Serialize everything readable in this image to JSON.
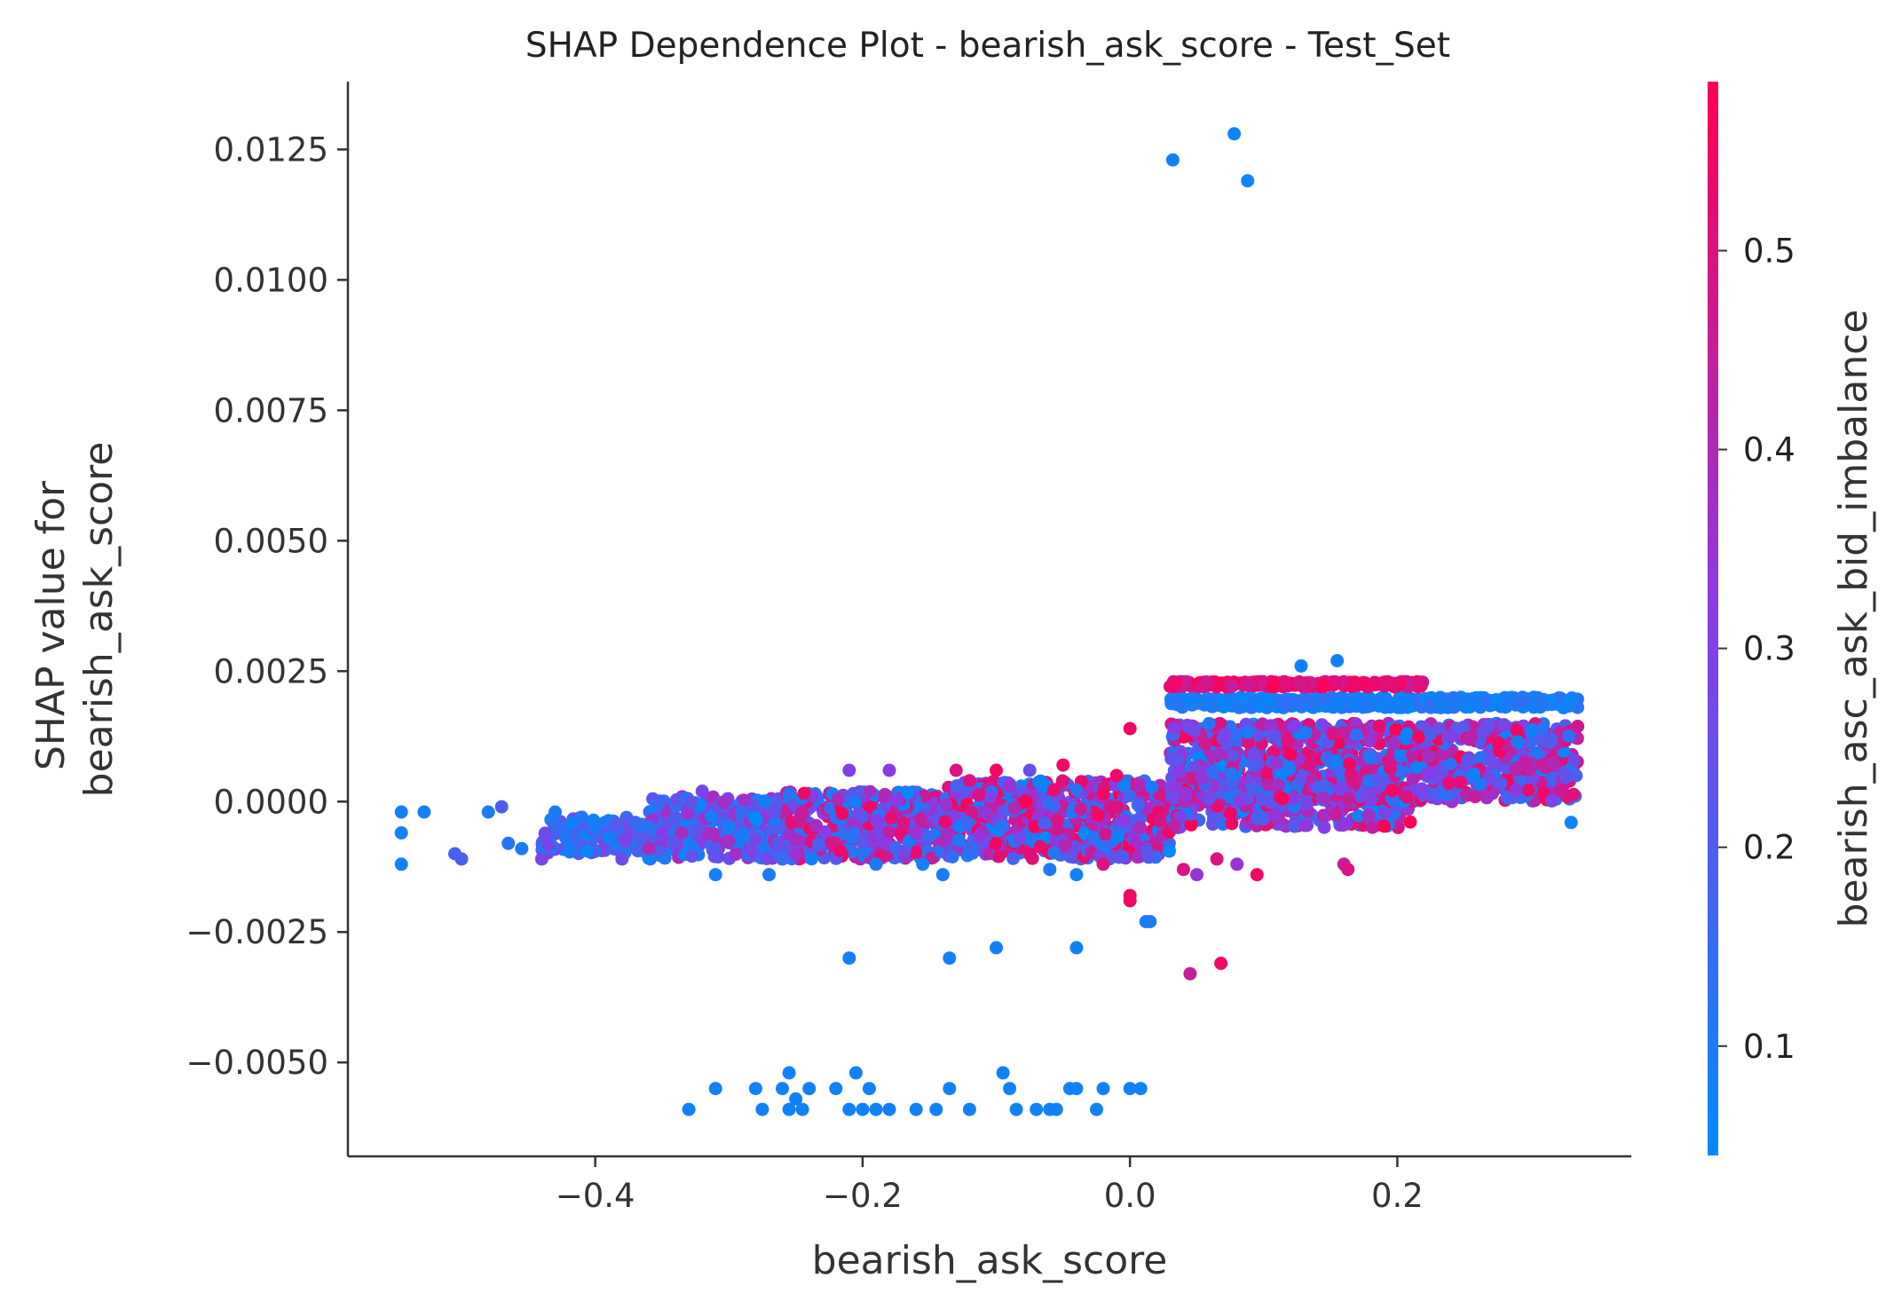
{
  "chart_data": {
    "type": "scatter",
    "title": "SHAP Dependence Plot - bearish_ask_score - Test_Set",
    "xlabel": "bearish_ask_score",
    "ylabel": "SHAP value for\nbearish_ask_score",
    "xlim": [
      -0.585,
      0.375
    ],
    "ylim": [
      -0.0068,
      0.0138
    ],
    "x_ticks": [
      -0.4,
      -0.2,
      0.0,
      0.2
    ],
    "x_tick_labels": [
      "−0.4",
      "−0.2",
      "0.0",
      "0.2"
    ],
    "y_ticks": [
      -0.005,
      -0.0025,
      0.0,
      0.0025,
      0.005,
      0.0075,
      0.01,
      0.0125
    ],
    "y_tick_labels": [
      "−0.0050",
      "−0.0025",
      "0.0000",
      "0.0025",
      "0.0050",
      "0.0075",
      "0.0100",
      "0.0125"
    ],
    "grid": false,
    "colorbar": {
      "label": "bearish_asc_ask_bid_imbalance",
      "range": [
        0.045,
        0.585
      ],
      "ticks": [
        0.1,
        0.2,
        0.3,
        0.4,
        0.5
      ],
      "tick_labels": [
        "0.1",
        "0.2",
        "0.3",
        "0.4",
        "0.5"
      ],
      "color_low": "#008bfb",
      "color_high": "#ff0051"
    },
    "points": [
      [
        0.032,
        0.0123,
        0.08
      ],
      [
        0.078,
        0.0128,
        0.07
      ],
      [
        0.088,
        0.0119,
        0.07
      ],
      [
        0.155,
        0.0027,
        0.08
      ],
      [
        0.128,
        0.0026,
        0.08
      ],
      [
        0.0,
        0.0014,
        0.55
      ],
      [
        0.33,
        -0.0004,
        0.07
      ],
      [
        -0.545,
        -0.0002,
        0.08
      ],
      [
        -0.545,
        -0.0006,
        0.08
      ],
      [
        -0.545,
        -0.0012,
        0.08
      ],
      [
        -0.528,
        -0.0002,
        0.08
      ],
      [
        -0.505,
        -0.001,
        0.18
      ],
      [
        -0.5,
        -0.0011,
        0.2
      ],
      [
        -0.48,
        -0.0002,
        0.1
      ],
      [
        -0.47,
        -0.0001,
        0.2
      ],
      [
        -0.465,
        -0.0008,
        0.12
      ],
      [
        -0.455,
        -0.0009,
        0.1
      ],
      [
        -0.44,
        -0.0011,
        0.28
      ],
      [
        -0.43,
        -0.0002,
        0.1
      ],
      [
        -0.42,
        -0.0009,
        0.1
      ],
      [
        -0.41,
        -0.0003,
        0.12
      ],
      [
        -0.4,
        -0.0005,
        0.1
      ],
      [
        -0.39,
        -0.0007,
        0.08
      ],
      [
        -0.38,
        -0.0011,
        0.25
      ],
      [
        -0.37,
        -0.0004,
        0.15
      ],
      [
        -0.36,
        -0.0009,
        0.4
      ],
      [
        -0.35,
        -0.0006,
        0.3
      ],
      [
        -0.34,
        -0.0003,
        0.2
      ],
      [
        -0.33,
        -0.0008,
        0.1
      ],
      [
        -0.32,
        0.0002,
        0.28
      ],
      [
        -0.31,
        -0.0009,
        0.22
      ],
      [
        -0.3,
        -0.0005,
        0.09
      ],
      [
        -0.31,
        -0.0014,
        0.08
      ],
      [
        -0.27,
        -0.0014,
        0.1
      ],
      [
        -0.26,
        -0.0011,
        0.15
      ],
      [
        -0.245,
        -0.0002,
        0.45
      ],
      [
        -0.21,
        0.0006,
        0.3
      ],
      [
        -0.19,
        -0.0012,
        0.1
      ],
      [
        -0.18,
        0.0006,
        0.32
      ],
      [
        -0.16,
        -0.0006,
        0.35
      ],
      [
        -0.155,
        -0.0012,
        0.08
      ],
      [
        -0.14,
        -0.0014,
        0.09
      ],
      [
        -0.13,
        0.0006,
        0.5
      ],
      [
        -0.12,
        0.0004,
        0.5
      ],
      [
        -0.1,
        0.0006,
        0.55
      ],
      [
        -0.09,
        0.0003,
        0.35
      ],
      [
        -0.075,
        0.0006,
        0.25
      ],
      [
        -0.06,
        -0.0013,
        0.1
      ],
      [
        -0.05,
        0.0007,
        0.55
      ],
      [
        -0.04,
        -0.0014,
        0.08
      ],
      [
        -0.02,
        -0.0012,
        0.5
      ],
      [
        -0.01,
        0.0005,
        0.55
      ],
      [
        0.0,
        -0.0018,
        0.55
      ],
      [
        0.0,
        -0.0019,
        0.55
      ],
      [
        0.012,
        -0.0023,
        0.1
      ],
      [
        0.015,
        -0.0023,
        0.1
      ],
      [
        0.04,
        -0.0013,
        0.5
      ],
      [
        0.05,
        -0.0014,
        0.35
      ],
      [
        0.065,
        -0.0011,
        0.5
      ],
      [
        0.08,
        -0.0012,
        0.35
      ],
      [
        0.095,
        -0.0014,
        0.55
      ],
      [
        0.16,
        -0.0012,
        0.45
      ],
      [
        0.163,
        -0.0013,
        0.5
      ],
      [
        -0.21,
        -0.003,
        0.08
      ],
      [
        -0.135,
        -0.003,
        0.08
      ],
      [
        -0.1,
        -0.0028,
        0.08
      ],
      [
        -0.04,
        -0.0028,
        0.08
      ],
      [
        0.045,
        -0.0033,
        0.45
      ],
      [
        0.068,
        -0.0031,
        0.55
      ],
      [
        -0.33,
        -0.0059,
        0.08
      ],
      [
        -0.31,
        -0.0055,
        0.08
      ],
      [
        -0.28,
        -0.0055,
        0.08
      ],
      [
        -0.275,
        -0.0059,
        0.08
      ],
      [
        -0.26,
        -0.0055,
        0.08
      ],
      [
        -0.255,
        -0.0052,
        0.08
      ],
      [
        -0.255,
        -0.0059,
        0.08
      ],
      [
        -0.25,
        -0.0057,
        0.08
      ],
      [
        -0.245,
        -0.0059,
        0.08
      ],
      [
        -0.24,
        -0.0055,
        0.08
      ],
      [
        -0.22,
        -0.0055,
        0.08
      ],
      [
        -0.21,
        -0.0059,
        0.08
      ],
      [
        -0.205,
        -0.0052,
        0.08
      ],
      [
        -0.2,
        -0.0059,
        0.08
      ],
      [
        -0.195,
        -0.0055,
        0.08
      ],
      [
        -0.19,
        -0.0059,
        0.08
      ],
      [
        -0.18,
        -0.0059,
        0.08
      ],
      [
        -0.16,
        -0.0059,
        0.08
      ],
      [
        -0.145,
        -0.0059,
        0.08
      ],
      [
        -0.135,
        -0.0055,
        0.08
      ],
      [
        -0.12,
        -0.0059,
        0.08
      ],
      [
        -0.095,
        -0.0052,
        0.08
      ],
      [
        -0.09,
        -0.0055,
        0.08
      ],
      [
        -0.085,
        -0.0059,
        0.08
      ],
      [
        -0.07,
        -0.0059,
        0.08
      ],
      [
        -0.06,
        -0.0059,
        0.08
      ],
      [
        -0.055,
        -0.0059,
        0.08
      ],
      [
        -0.045,
        -0.0055,
        0.08
      ],
      [
        -0.04,
        -0.0055,
        0.08
      ],
      [
        -0.025,
        -0.0059,
        0.08
      ],
      [
        -0.02,
        -0.0055,
        0.08
      ],
      [
        0.0,
        -0.0055,
        0.08
      ],
      [
        0.008,
        -0.0055,
        0.08
      ]
    ],
    "bands": [
      {
        "x": [
          -0.44,
          -0.36
        ],
        "y": [
          -0.001,
          -0.0003
        ],
        "count": 140,
        "color_range": [
          0.05,
          0.3
        ]
      },
      {
        "x": [
          -0.36,
          -0.26
        ],
        "y": [
          -0.0011,
          0.0001
        ],
        "count": 260,
        "color_range": [
          0.05,
          0.4
        ]
      },
      {
        "x": [
          -0.26,
          -0.14
        ],
        "y": [
          -0.0011,
          0.0002
        ],
        "count": 380,
        "color_range": [
          0.05,
          0.55
        ]
      },
      {
        "x": [
          -0.14,
          0.03
        ],
        "y": [
          -0.0011,
          0.0004
        ],
        "count": 600,
        "color_range": [
          0.05,
          0.58
        ]
      },
      {
        "x": [
          0.03,
          0.21
        ],
        "y": [
          -0.0005,
          0.0003
        ],
        "count": 260,
        "color_range": [
          0.05,
          0.58
        ]
      },
      {
        "x": [
          0.03,
          0.335
        ],
        "y": [
          0.0,
          0.001
        ],
        "count": 720,
        "color_range": [
          0.05,
          0.58
        ]
      },
      {
        "x": [
          0.03,
          0.335
        ],
        "y": [
          0.0018,
          0.002
        ],
        "count": 360,
        "color_range": [
          0.05,
          0.14
        ]
      },
      {
        "x": [
          0.03,
          0.22
        ],
        "y": [
          0.0022,
          0.0023
        ],
        "count": 220,
        "color_range": [
          0.45,
          0.58
        ]
      },
      {
        "x": [
          0.03,
          0.335
        ],
        "y": [
          0.0011,
          0.0015
        ],
        "count": 380,
        "color_range": [
          0.05,
          0.58
        ]
      }
    ]
  }
}
